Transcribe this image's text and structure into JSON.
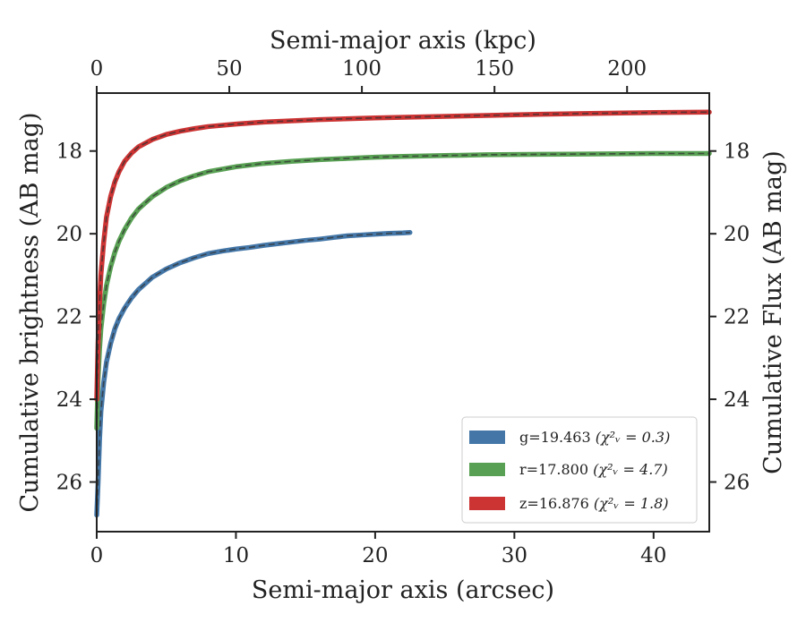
{
  "chart_data": {
    "type": "line",
    "xlabel": "Semi-major axis (arcsec)",
    "x2label": "Semi-major axis (kpc)",
    "ylabel": "Cumulative brightness (AB mag)",
    "y2label": "Cumulative Flux (AB mag)",
    "xlim": [
      0,
      44
    ],
    "x2lim": [
      0,
      231
    ],
    "ylim": [
      27.2,
      16.6
    ],
    "y_inverted": true,
    "x_ticks": [
      0,
      10,
      20,
      30,
      40
    ],
    "x_tick_labels": [
      "0",
      "10",
      "20",
      "30",
      "40"
    ],
    "x2_ticks": [
      0,
      50,
      100,
      150,
      200
    ],
    "x2_tick_labels": [
      "0",
      "50",
      "100",
      "150",
      "200"
    ],
    "y_ticks": [
      18,
      20,
      22,
      24,
      26
    ],
    "y_tick_labels": [
      "18",
      "20",
      "22",
      "24",
      "26"
    ],
    "legend_position": "lower-right",
    "grid": false,
    "series": [
      {
        "name": "g=19.463",
        "chi_label": "(χ²ᵥ = 0.3)",
        "color": "#4477a8",
        "x": [
          0.0,
          0.1,
          0.2,
          0.3,
          0.5,
          0.7,
          1.0,
          1.3,
          1.6,
          2.0,
          2.5,
          3.0,
          3.5,
          4.0,
          5.0,
          6.0,
          7.0,
          8.0,
          9.0,
          10.0,
          11.0,
          12.0,
          13.0,
          14.0,
          15.0,
          16.0,
          17.0,
          18.0,
          19.0,
          20.0,
          21.0,
          22.0,
          22.5
        ],
        "y": [
          26.8,
          26.0,
          25.0,
          24.3,
          23.6,
          23.1,
          22.65,
          22.3,
          22.05,
          21.8,
          21.55,
          21.35,
          21.2,
          21.05,
          20.85,
          20.7,
          20.58,
          20.48,
          20.42,
          20.37,
          20.33,
          20.28,
          20.24,
          20.2,
          20.16,
          20.13,
          20.09,
          20.05,
          20.03,
          20.01,
          19.99,
          19.98,
          19.97
        ]
      },
      {
        "name": "r=17.800",
        "chi_label": "(χ²ᵥ = 4.7)",
        "color": "#58a053",
        "x": [
          0.0,
          0.1,
          0.2,
          0.3,
          0.5,
          0.7,
          1.0,
          1.3,
          1.6,
          2.0,
          2.5,
          3.0,
          4.0,
          5.0,
          6.0,
          7.0,
          8.0,
          10.0,
          12.0,
          14.0,
          16.0,
          18.0,
          20.0,
          22.0,
          25.0,
          28.0,
          32.0,
          36.0,
          40.0,
          44.0
        ],
        "y": [
          24.7,
          23.5,
          22.8,
          22.3,
          21.7,
          21.25,
          20.8,
          20.45,
          20.18,
          19.9,
          19.62,
          19.4,
          19.1,
          18.88,
          18.72,
          18.6,
          18.5,
          18.38,
          18.3,
          18.25,
          18.21,
          18.18,
          18.15,
          18.13,
          18.11,
          18.09,
          18.08,
          18.07,
          18.06,
          18.06
        ]
      },
      {
        "name": "z=16.876",
        "chi_label": "(χ²ᵥ = 1.8)",
        "color": "#cc3333",
        "x": [
          0.0,
          0.1,
          0.2,
          0.3,
          0.5,
          0.7,
          1.0,
          1.3,
          1.6,
          2.0,
          2.5,
          3.0,
          4.0,
          5.0,
          6.0,
          7.0,
          8.0,
          10.0,
          12.0,
          14.0,
          16.0,
          20.0,
          24.0,
          28.0,
          32.0,
          36.0,
          40.0,
          44.0
        ],
        "y": [
          24.0,
          22.6,
          21.7,
          21.0,
          20.2,
          19.6,
          19.1,
          18.75,
          18.5,
          18.25,
          18.05,
          17.9,
          17.72,
          17.6,
          17.52,
          17.46,
          17.41,
          17.35,
          17.3,
          17.27,
          17.24,
          17.2,
          17.17,
          17.14,
          17.11,
          17.09,
          17.07,
          17.06
        ]
      }
    ]
  }
}
